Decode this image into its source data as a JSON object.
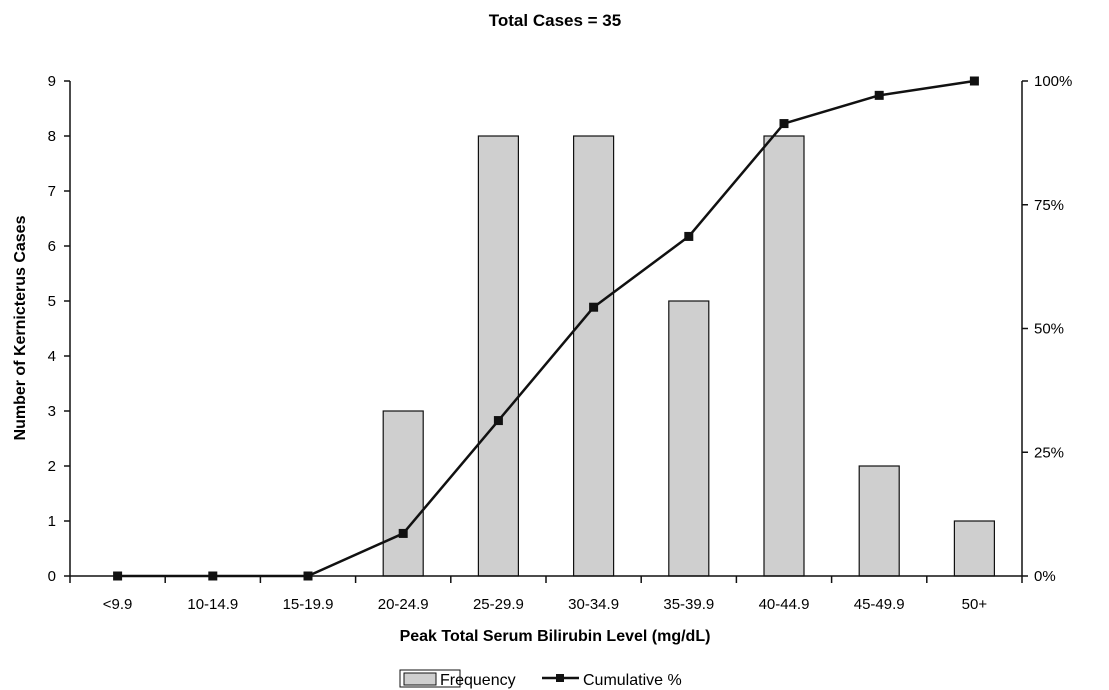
{
  "chart_data": {
    "type": "bar",
    "title": "Total Cases = 35",
    "xlabel": "Peak Total Serum Bilirubin Level (mg/dL)",
    "ylabel": "Number of Kernicterus Cases",
    "categories": [
      "<9.9",
      "10-14.9",
      "15-19.9",
      "20-24.9",
      "25-29.9",
      "30-34.9",
      "35-39.9",
      "40-44.9",
      "45-49.9",
      "50+"
    ],
    "series": [
      {
        "name": "Frequency",
        "type": "bar",
        "axis": "left",
        "values": [
          0,
          0,
          0,
          3,
          8,
          8,
          5,
          8,
          2,
          1
        ]
      },
      {
        "name": "Cumulative %",
        "type": "line",
        "axis": "right",
        "values": [
          0,
          0,
          0,
          8.6,
          31.4,
          54.3,
          68.6,
          91.4,
          97.1,
          100
        ]
      }
    ],
    "ylim": [
      0,
      9
    ],
    "yticks": [
      "0",
      "1",
      "2",
      "3",
      "4",
      "5",
      "6",
      "7",
      "8",
      "9"
    ],
    "y2lim": [
      0,
      100
    ],
    "y2ticks": [
      "0%",
      "25%",
      "50%",
      "75%",
      "100%"
    ],
    "grid": false,
    "legend_position": "bottom",
    "colors": {
      "bar_fill": "#cfcfcf",
      "bar_stroke": "#111111",
      "line": "#111111",
      "marker": "#111111"
    }
  }
}
